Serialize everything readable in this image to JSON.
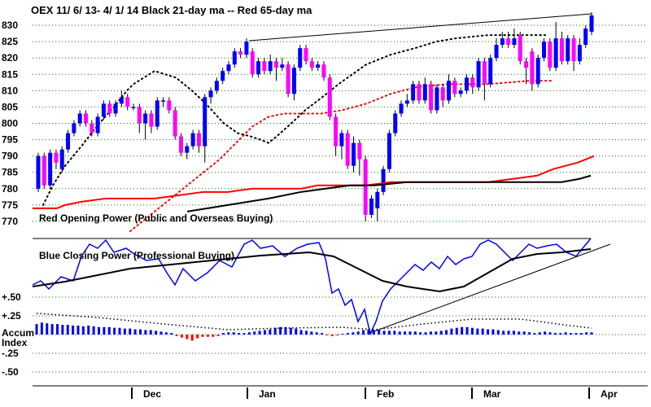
{
  "title": "OEX   11/ 6/ 13-  4/ 1/ 14     Black 21-day ma --  Red 65-day ma",
  "colors": {
    "up": "#0000ff",
    "down": "#ff00ff",
    "ma21": "#000000",
    "ma65": "#ff0000",
    "grid": "#008000",
    "accum_pos": "#0000ff",
    "accum_neg": "#ff0000",
    "opening_power": "#ff0000",
    "closing_power": "#0000ff"
  },
  "chart_data": [
    {
      "type": "candlestick",
      "y_ticks": [
        770,
        775,
        780,
        785,
        790,
        795,
        800,
        805,
        810,
        815,
        820,
        825,
        830
      ],
      "ylim": [
        767,
        833
      ],
      "x_months": [
        "Dec",
        "Jan",
        "Feb",
        "Mar",
        "Apr"
      ],
      "candles": [
        {
          "o": 780,
          "c": 790,
          "h": 791,
          "l": 779
        },
        {
          "o": 790,
          "c": 781,
          "h": 791,
          "l": 780
        },
        {
          "o": 781,
          "c": 791,
          "h": 792,
          "l": 780
        },
        {
          "o": 791,
          "c": 788,
          "h": 792,
          "l": 786
        },
        {
          "o": 786,
          "c": 792,
          "h": 793,
          "l": 785
        },
        {
          "o": 792,
          "c": 797,
          "h": 798,
          "l": 791
        },
        {
          "o": 797,
          "c": 800,
          "h": 801,
          "l": 796
        },
        {
          "o": 800,
          "c": 803,
          "h": 804,
          "l": 799
        },
        {
          "o": 803,
          "c": 800,
          "h": 804,
          "l": 799
        },
        {
          "o": 800,
          "c": 797,
          "h": 801,
          "l": 796
        },
        {
          "o": 797,
          "c": 802,
          "h": 803,
          "l": 796
        },
        {
          "o": 802,
          "c": 806,
          "h": 807,
          "l": 801
        },
        {
          "o": 806,
          "c": 803,
          "h": 807,
          "l": 802
        },
        {
          "o": 803,
          "c": 806,
          "h": 807,
          "l": 802
        },
        {
          "o": 806,
          "c": 808,
          "h": 810,
          "l": 805
        },
        {
          "o": 808,
          "c": 805,
          "h": 809,
          "l": 804
        },
        {
          "o": 805,
          "c": 805,
          "h": 806,
          "l": 804
        },
        {
          "o": 805,
          "c": 800,
          "h": 806,
          "l": 797
        },
        {
          "o": 800,
          "c": 803,
          "h": 804,
          "l": 795
        },
        {
          "o": 803,
          "c": 799,
          "h": 804,
          "l": 797
        },
        {
          "o": 799,
          "c": 807,
          "h": 808,
          "l": 798
        },
        {
          "o": 807,
          "c": 807,
          "h": 808,
          "l": 805
        },
        {
          "o": 807,
          "c": 804,
          "h": 808,
          "l": 803
        },
        {
          "o": 804,
          "c": 796,
          "h": 805,
          "l": 795
        },
        {
          "o": 796,
          "c": 791,
          "h": 797,
          "l": 790
        },
        {
          "o": 791,
          "c": 793,
          "h": 794,
          "l": 789
        },
        {
          "o": 793,
          "c": 797,
          "h": 798,
          "l": 792
        },
        {
          "o": 797,
          "c": 793,
          "h": 798,
          "l": 791
        },
        {
          "o": 793,
          "c": 808,
          "h": 809,
          "l": 788
        },
        {
          "o": 808,
          "c": 810,
          "h": 811,
          "l": 806
        },
        {
          "o": 810,
          "c": 813,
          "h": 814,
          "l": 809
        },
        {
          "o": 813,
          "c": 816,
          "h": 817,
          "l": 812
        },
        {
          "o": 816,
          "c": 818,
          "h": 819,
          "l": 815
        },
        {
          "o": 818,
          "c": 822,
          "h": 823,
          "l": 817
        },
        {
          "o": 822,
          "c": 821,
          "h": 823,
          "l": 820
        },
        {
          "o": 821,
          "c": 825,
          "h": 826,
          "l": 820
        },
        {
          "o": 822,
          "c": 815,
          "h": 823,
          "l": 814
        },
        {
          "o": 815,
          "c": 819,
          "h": 820,
          "l": 814
        },
        {
          "o": 819,
          "c": 816,
          "h": 820,
          "l": 815
        },
        {
          "o": 816,
          "c": 819,
          "h": 821,
          "l": 815
        },
        {
          "o": 819,
          "c": 817,
          "h": 820,
          "l": 813
        },
        {
          "o": 817,
          "c": 818,
          "h": 820,
          "l": 816
        },
        {
          "o": 818,
          "c": 809,
          "h": 819,
          "l": 808
        },
        {
          "o": 809,
          "c": 817,
          "h": 818,
          "l": 807
        },
        {
          "o": 817,
          "c": 823,
          "h": 824,
          "l": 816
        },
        {
          "o": 823,
          "c": 819,
          "h": 824,
          "l": 818
        },
        {
          "o": 819,
          "c": 817,
          "h": 820,
          "l": 816
        },
        {
          "o": 817,
          "c": 818,
          "h": 819,
          "l": 816
        },
        {
          "o": 818,
          "c": 814,
          "h": 819,
          "l": 813
        },
        {
          "o": 814,
          "c": 802,
          "h": 815,
          "l": 801
        },
        {
          "o": 802,
          "c": 793,
          "h": 803,
          "l": 790
        },
        {
          "o": 793,
          "c": 797,
          "h": 798,
          "l": 789
        },
        {
          "o": 797,
          "c": 787,
          "h": 798,
          "l": 786
        },
        {
          "o": 787,
          "c": 794,
          "h": 796,
          "l": 785
        },
        {
          "o": 794,
          "c": 789,
          "h": 795,
          "l": 784
        },
        {
          "o": 789,
          "c": 772,
          "h": 790,
          "l": 770
        },
        {
          "o": 772,
          "c": 777,
          "h": 778,
          "l": 771
        },
        {
          "o": 774,
          "c": 779,
          "h": 780,
          "l": 770
        },
        {
          "o": 779,
          "c": 786,
          "h": 787,
          "l": 778
        },
        {
          "o": 786,
          "c": 797,
          "h": 798,
          "l": 785
        },
        {
          "o": 797,
          "c": 803,
          "h": 804,
          "l": 796
        },
        {
          "o": 803,
          "c": 806,
          "h": 807,
          "l": 802
        },
        {
          "o": 806,
          "c": 807,
          "h": 809,
          "l": 805
        },
        {
          "o": 807,
          "c": 812,
          "h": 813,
          "l": 806
        },
        {
          "o": 812,
          "c": 807,
          "h": 813,
          "l": 806
        },
        {
          "o": 807,
          "c": 812,
          "h": 814,
          "l": 806
        },
        {
          "o": 812,
          "c": 804,
          "h": 813,
          "l": 803
        },
        {
          "o": 804,
          "c": 811,
          "h": 812,
          "l": 803
        },
        {
          "o": 811,
          "c": 807,
          "h": 812,
          "l": 805
        },
        {
          "o": 807,
          "c": 813,
          "h": 815,
          "l": 806
        },
        {
          "o": 813,
          "c": 809,
          "h": 814,
          "l": 808
        },
        {
          "o": 809,
          "c": 810,
          "h": 811,
          "l": 808
        },
        {
          "o": 810,
          "c": 814,
          "h": 815,
          "l": 809
        },
        {
          "o": 814,
          "c": 811,
          "h": 815,
          "l": 809
        },
        {
          "o": 811,
          "c": 819,
          "h": 820,
          "l": 810
        },
        {
          "o": 819,
          "c": 812,
          "h": 820,
          "l": 807
        },
        {
          "o": 812,
          "c": 820,
          "h": 821,
          "l": 811
        },
        {
          "o": 820,
          "c": 824,
          "h": 826,
          "l": 819
        },
        {
          "o": 824,
          "c": 826,
          "h": 828,
          "l": 823
        },
        {
          "o": 826,
          "c": 824,
          "h": 828,
          "l": 823
        },
        {
          "o": 824,
          "c": 826,
          "h": 829,
          "l": 823
        },
        {
          "o": 827,
          "c": 819,
          "h": 828,
          "l": 818
        },
        {
          "o": 819,
          "c": 817,
          "h": 820,
          "l": 812
        },
        {
          "o": 822,
          "c": 812,
          "h": 823,
          "l": 810
        },
        {
          "o": 812,
          "c": 820,
          "h": 821,
          "l": 811
        },
        {
          "o": 820,
          "c": 825,
          "h": 826,
          "l": 819
        },
        {
          "o": 825,
          "c": 817,
          "h": 826,
          "l": 816
        },
        {
          "o": 817,
          "c": 826,
          "h": 831,
          "l": 816
        },
        {
          "o": 826,
          "c": 819,
          "h": 828,
          "l": 818
        },
        {
          "o": 819,
          "c": 826,
          "h": 827,
          "l": 818
        },
        {
          "o": 826,
          "c": 819,
          "h": 827,
          "l": 816
        },
        {
          "o": 819,
          "c": 824,
          "h": 826,
          "l": 818
        },
        {
          "o": 824,
          "c": 829,
          "h": 830,
          "l": 823
        },
        {
          "o": 828,
          "c": 833,
          "h": 834,
          "l": 827
        }
      ],
      "ma21": [
        [
          13,
          775
        ],
        [
          25,
          781
        ],
        [
          40,
          787
        ],
        [
          60,
          793
        ],
        [
          82,
          800
        ],
        [
          100,
          805
        ],
        [
          116,
          810
        ],
        [
          124,
          812
        ],
        [
          150,
          816
        ],
        [
          176,
          814
        ],
        [
          196,
          810
        ],
        [
          213,
          806
        ],
        [
          235,
          800
        ],
        [
          252,
          797
        ],
        [
          268,
          796
        ],
        [
          280,
          795
        ],
        [
          290,
          794
        ],
        [
          300,
          796
        ],
        [
          318,
          800
        ],
        [
          335,
          804
        ],
        [
          356,
          808
        ],
        [
          376,
          812
        ],
        [
          410,
          818
        ],
        [
          440,
          821
        ],
        [
          470,
          823
        ],
        [
          496,
          825
        ],
        [
          520,
          826
        ],
        [
          560,
          827
        ],
        [
          600,
          827
        ],
        [
          630,
          827
        ]
      ],
      "ma65": [
        [
          120,
          767
        ],
        [
          160,
          775
        ],
        [
          200,
          783
        ],
        [
          230,
          789
        ],
        [
          250,
          794
        ],
        [
          270,
          799
        ],
        [
          290,
          802
        ],
        [
          310,
          803
        ],
        [
          330,
          803
        ],
        [
          355,
          803
        ],
        [
          380,
          804
        ],
        [
          410,
          806
        ],
        [
          440,
          809
        ],
        [
          470,
          811
        ],
        [
          510,
          812
        ],
        [
          560,
          812
        ],
        [
          610,
          813
        ],
        [
          640,
          813
        ]
      ]
    },
    {
      "type": "line",
      "series": [
        {
          "name": "Red Opening Power (Public and Overseas Buying)",
          "points": [
            [
              0,
              774
            ],
            [
              12,
              774
            ],
            [
              20,
              774
            ],
            [
              30,
              774
            ],
            [
              40,
              775
            ],
            [
              60,
              776
            ],
            [
              90,
              777
            ],
            [
              120,
              777
            ],
            [
              150,
              777
            ],
            [
              180,
              778
            ],
            [
              210,
              779
            ],
            [
              240,
              779
            ],
            [
              270,
              780
            ],
            [
              300,
              780
            ],
            [
              330,
              780
            ],
            [
              350,
              781
            ],
            [
              380,
              781
            ],
            [
              410,
              781
            ],
            [
              440,
              782
            ],
            [
              470,
              782
            ],
            [
              500,
              782
            ],
            [
              530,
              782
            ],
            [
              560,
              782
            ],
            [
              590,
              783
            ],
            [
              620,
              784
            ],
            [
              640,
              786
            ],
            [
              670,
              788
            ],
            [
              690,
              790
            ]
          ]
        }
      ]
    },
    {
      "type": "line",
      "series": [
        {
          "name": "Blue Closing Power (Professional Buying)"
        }
      ]
    },
    {
      "type": "bar",
      "y_ticks": [
        "+.50",
        "+.25",
        "-.25",
        "-.50"
      ],
      "y_label": "Accum Index",
      "ylim": [
        -0.5,
        0.5
      ],
      "values": [
        0.14,
        0.16,
        0.15,
        0.14,
        0.14,
        0.13,
        0.13,
        0.12,
        0.12,
        0.11,
        0.12,
        0.11,
        0.1,
        0.1,
        0.1,
        0.09,
        0.09,
        0.08,
        0.08,
        0.07,
        0.07,
        0.06,
        0.06,
        0.05,
        0.04,
        0.03,
        0.02,
        -0.02,
        -0.04,
        -0.06,
        -0.08,
        -0.05,
        -0.03,
        -0.03,
        -0.03,
        -0.02,
        0.02,
        0.03,
        0.03,
        0.02,
        0.02,
        0.03,
        0.04,
        0.05,
        0.06,
        0.07,
        0.09,
        0.1,
        0.1,
        0.09,
        0.08,
        0.06,
        0.05,
        0.04,
        0.03,
        0.02,
        -0.01,
        -0.02,
        -0.01,
        0.01,
        0.02,
        0.03,
        0.04,
        0.06,
        0.07,
        0.06,
        0.06,
        0.05,
        0.05,
        0.05,
        0.04,
        0.04,
        0.04,
        0.04,
        0.03,
        0.03,
        0.04,
        0.04,
        0.05,
        0.06,
        0.08,
        0.09,
        0.1,
        0.1,
        0.09,
        0.08,
        0.08,
        0.07,
        0.07,
        0.06,
        0.05,
        0.05,
        0.05,
        0.04,
        0.04,
        0.03,
        0.02,
        0.03,
        0.04,
        0.03,
        0.02,
        0.02,
        0.03,
        0.02,
        0.02,
        0.02,
        0.03,
        0.03
      ]
    }
  ]
}
